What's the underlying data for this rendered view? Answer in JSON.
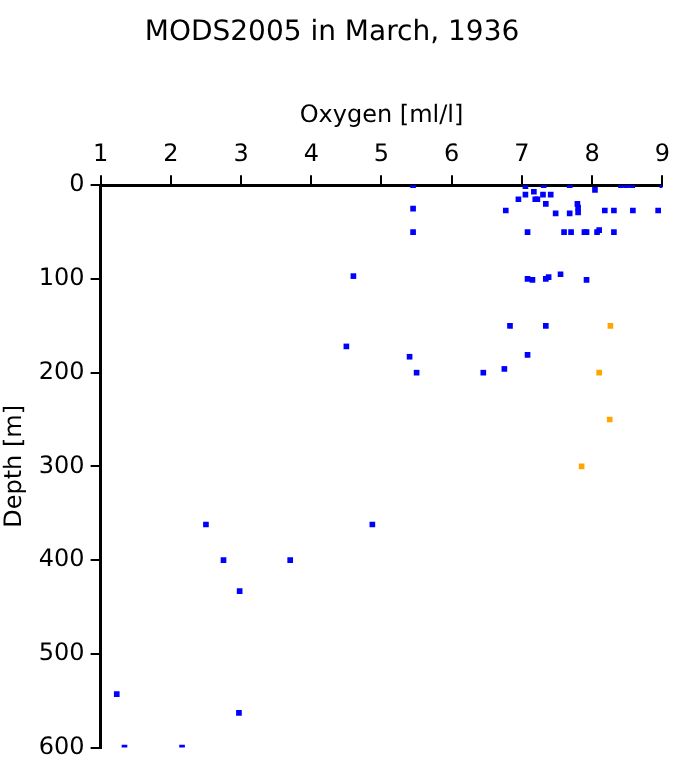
{
  "chart_data": {
    "type": "scatter",
    "title": "MODS2005 in March, 1936",
    "xlabel": "Oxygen [ml/l]",
    "ylabel": "Depth [m]",
    "xlim": [
      1,
      9
    ],
    "xticks": [
      1,
      2,
      3,
      4,
      5,
      6,
      7,
      8,
      9
    ],
    "ylim": [
      600,
      0
    ],
    "yticks": [
      0,
      100,
      200,
      300,
      400,
      500,
      600
    ],
    "grid": false,
    "legend": false,
    "marker": "square",
    "series": [
      {
        "color": "#0000ff",
        "x": [
          5.45,
          5.45,
          5.45,
          4.6,
          4.5,
          5.4,
          5.5,
          6.45,
          6.75,
          6.83,
          6.77,
          7.05,
          7.05,
          7.17,
          7.31,
          7.3,
          7.41,
          6.95,
          7.19,
          7.22,
          7.34,
          7.48,
          7.68,
          7.79,
          7.8,
          7.8,
          7.68,
          8.04,
          8.18,
          8.31,
          8.41,
          8.49,
          8.57,
          8.58,
          8.94,
          9.0,
          7.08,
          7.6,
          7.7,
          7.89,
          7.92,
          8.07,
          8.1,
          8.31,
          7.08,
          7.15,
          7.34,
          7.38,
          7.55,
          7.92,
          7.34,
          7.08,
          1.23,
          1.34,
          2.16,
          2.5,
          2.75,
          2.98,
          3.7,
          4.87,
          2.97
        ],
        "values": [
          0,
          25,
          50,
          97,
          172,
          183,
          200,
          200,
          196,
          150,
          27,
          1,
          10,
          7,
          0,
          10,
          10,
          15,
          15,
          15,
          20,
          30,
          30,
          20,
          24,
          29,
          0,
          5,
          27,
          27,
          0,
          0,
          0,
          27,
          27,
          0,
          50,
          50,
          50,
          50,
          50,
          50,
          48,
          50,
          100,
          101,
          100,
          98,
          95,
          101,
          150,
          181,
          543,
          600,
          600,
          362,
          400,
          433,
          400,
          362,
          563
        ]
      },
      {
        "color": "#ffa500",
        "x": [
          8.26,
          8.1,
          8.25,
          7.85
        ],
        "values": [
          150,
          200,
          250,
          300
        ]
      }
    ]
  }
}
